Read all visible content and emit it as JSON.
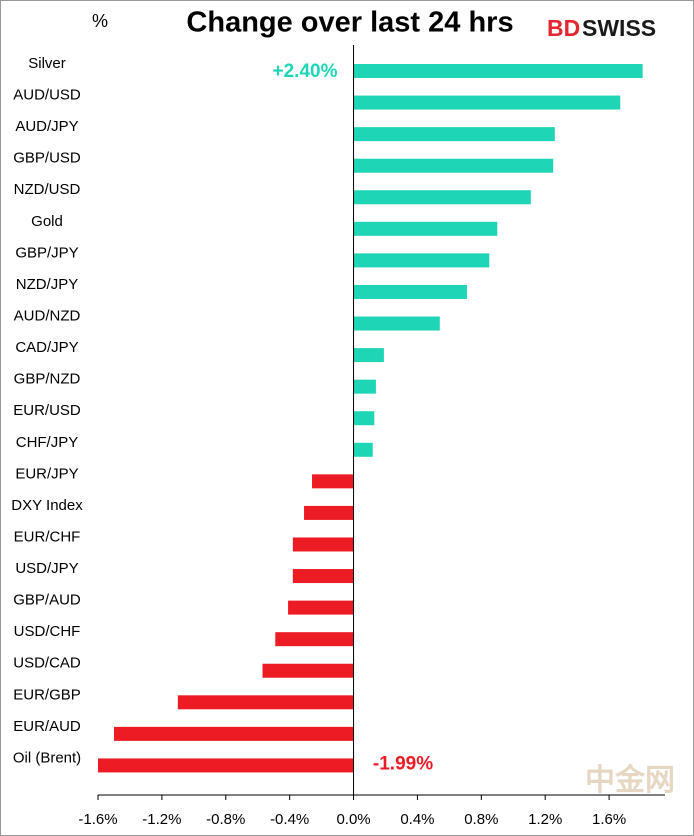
{
  "chart_data": {
    "type": "hbar",
    "title": "Change over last 24 hrs",
    "unit_label": "%",
    "logo_red": "BD",
    "logo_dark": "SWISS",
    "watermark": "中金网",
    "categories": [
      "Silver",
      "AUD/USD",
      "AUD/JPY",
      "GBP/USD",
      "NZD/USD",
      "Gold",
      "GBP/JPY",
      "NZD/JPY",
      "AUD/NZD",
      "CAD/JPY",
      "GBP/NZD",
      "EUR/USD",
      "CHF/JPY",
      "EUR/JPY",
      "DXY Index",
      "EUR/CHF",
      "USD/JPY",
      "GBP/AUD",
      "USD/CHF",
      "USD/CAD",
      "EUR/GBP",
      "EUR/AUD",
      "Oil (Brent)"
    ],
    "values": [
      1.81,
      1.67,
      1.26,
      1.25,
      1.11,
      0.9,
      0.85,
      0.71,
      0.54,
      0.19,
      0.14,
      0.13,
      0.12,
      -0.26,
      -0.31,
      -0.38,
      -0.38,
      -0.41,
      -0.49,
      -0.57,
      -1.1,
      -1.5,
      -1.6
    ],
    "positive_color": "#1ed6b5",
    "negative_color": "#ed1c24",
    "xlim": [
      -1.6,
      1.95
    ],
    "xticks": [
      {
        "value": -1.6,
        "label": "-1.6%"
      },
      {
        "value": -1.2,
        "label": "-1.2%"
      },
      {
        "value": -0.8,
        "label": "-0.8%"
      },
      {
        "value": -0.4,
        "label": "-0.4%"
      },
      {
        "value": 0,
        "label": "0.0%"
      },
      {
        "value": 0.4,
        "label": "0.4%"
      },
      {
        "value": 0.8,
        "label": "0.8%"
      },
      {
        "value": 1.2,
        "label": "1.2%"
      },
      {
        "value": 1.6,
        "label": "1.6%"
      }
    ],
    "annotations": [
      "+2.40%",
      "-1.99%"
    ]
  }
}
